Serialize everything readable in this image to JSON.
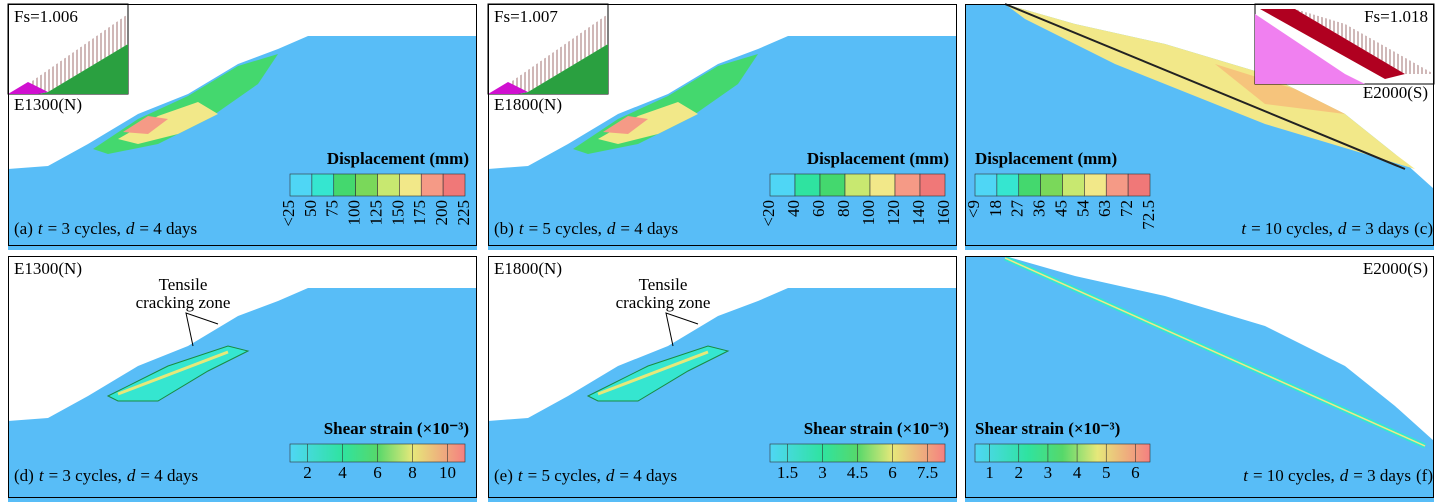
{
  "panels": [
    {
      "fs": "Fs=1.006",
      "section": "E1300(N)",
      "legend_title": "Displacement (mm)",
      "ticks": [
        "<25",
        "50",
        "75",
        "100",
        "125",
        "150",
        "175",
        "200",
        "225"
      ],
      "caption": {
        "label": "(a)",
        "parts": [
          "t",
          "= 3 cycles,",
          "d",
          "= 4 days"
        ]
      }
    },
    {
      "fs": "Fs=1.007",
      "section": "E1800(N)",
      "legend_title": "Displacement (mm)",
      "ticks": [
        "<20",
        "40",
        "60",
        "80",
        "100",
        "120",
        "140",
        "160"
      ],
      "caption": {
        "label": "(b)",
        "parts": [
          "t",
          "= 5 cycles,",
          "d",
          "= 4 days"
        ]
      }
    },
    {
      "fs": "Fs=1.018",
      "section": "E2000(S)",
      "legend_title": "Displacement (mm)",
      "ticks": [
        "<9",
        "18",
        "27",
        "36",
        "45",
        "54",
        "63",
        "72",
        "72.5"
      ],
      "caption": {
        "label": "(c)",
        "parts": [
          "t",
          "= 10 cycles,",
          "d",
          "= 3 days"
        ]
      }
    },
    {
      "section": "E1300(N)",
      "annotation": [
        "Tensile",
        "cracking zone"
      ],
      "legend_title": "Shear strain (×10⁻³)",
      "ticks": [
        "2",
        "4",
        "6",
        "8",
        "10"
      ],
      "caption": {
        "label": "(d)",
        "parts": [
          "t",
          "= 3 cycles,",
          "d",
          "= 4 days"
        ]
      }
    },
    {
      "section": "E1800(N)",
      "annotation": [
        "Tensile",
        "cracking zone"
      ],
      "legend_title": "Shear strain (×10⁻³)",
      "ticks": [
        "1.5",
        "3",
        "4.5",
        "6",
        "7.5"
      ],
      "caption": {
        "label": "(e)",
        "parts": [
          "t",
          "= 5 cycles,",
          "d",
          "= 4 days"
        ]
      }
    },
    {
      "section": "E2000(S)",
      "legend_title": "Shear strain (×10⁻³)",
      "ticks": [
        "1",
        "2",
        "3",
        "4",
        "5",
        "6"
      ],
      "caption": {
        "label": "(f)",
        "parts": [
          "t",
          "= 10 cycles,",
          "d",
          "= 3 days"
        ]
      }
    }
  ]
}
